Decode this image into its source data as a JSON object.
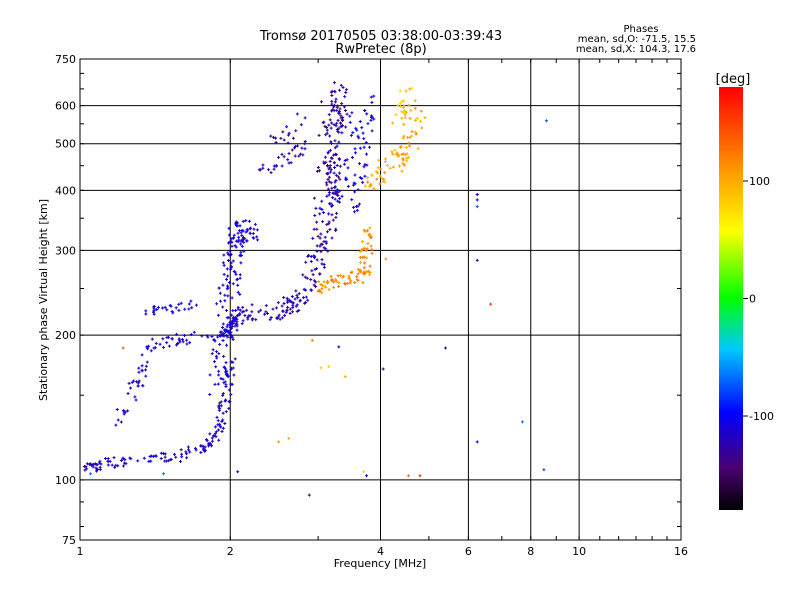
{
  "chart_data": {
    "type": "scatter",
    "title": "Tromsø 20170505 03:38:00-03:39:43",
    "subtitle": "RwPretec (8p)",
    "xlabel": "Frequency [MHz]",
    "ylabel": "Stationary phase Virtual Height [km]",
    "x_scale": "log",
    "y_scale": "log",
    "xlim": [
      1,
      16
    ],
    "ylim": [
      75,
      750
    ],
    "x_ticks": [
      "1",
      "2",
      "4",
      "6",
      "8",
      "10",
      "16"
    ],
    "y_ticks": [
      "75",
      "100",
      "200",
      "300",
      "400",
      "500",
      "600",
      "750"
    ],
    "grid": true,
    "stats": {
      "heading": "Phases",
      "line_o": "mean, sd,O: -71.5, 15.5",
      "line_x": "mean, sd,X: 104.3, 17.6"
    },
    "colorbar": {
      "label": "[deg]",
      "range": [
        -180,
        180
      ],
      "ticks": [
        "100",
        "0",
        "-100"
      ]
    },
    "traces": [
      {
        "phase": -120,
        "segments": [
          [
            1.02,
            105
          ],
          [
            1.1,
            108
          ],
          [
            1.3,
            110
          ],
          [
            1.6,
            112
          ],
          [
            1.8,
            118
          ],
          [
            1.92,
            130
          ],
          [
            1.97,
            150
          ],
          [
            2.0,
            175
          ]
        ],
        "density": 22,
        "jitter": 0.025
      },
      {
        "phase": -115,
        "segments": [
          [
            1.2,
            130
          ],
          [
            1.3,
            160
          ],
          [
            1.4,
            192
          ],
          [
            1.6,
            196
          ],
          [
            1.9,
            198
          ],
          [
            2.0,
            205
          ],
          [
            2.05,
            220
          ]
        ],
        "density": 18,
        "jitter": 0.03
      },
      {
        "phase": -110,
        "segments": [
          [
            1.35,
            225
          ],
          [
            1.5,
            226
          ],
          [
            1.7,
            232
          ]
        ],
        "density": 14,
        "jitter": 0.02
      },
      {
        "phase": -115,
        "segments": [
          [
            1.9,
            150
          ],
          [
            1.95,
            200
          ],
          [
            2.0,
            260
          ],
          [
            2.05,
            300
          ],
          [
            2.1,
            330
          ],
          [
            2.2,
            330
          ]
        ],
        "density": 30,
        "jitter": 0.05
      },
      {
        "phase": -125,
        "segments": [
          [
            2.0,
            210
          ],
          [
            2.1,
            222
          ],
          [
            2.5,
            225
          ],
          [
            2.7,
            232
          ],
          [
            2.9,
            260
          ],
          [
            3.0,
            300
          ],
          [
            3.15,
            380
          ],
          [
            3.2,
            450
          ],
          [
            3.25,
            560
          ],
          [
            3.3,
            650
          ]
        ],
        "density": 26,
        "jitter": 0.04
      },
      {
        "phase": -140,
        "segments": [
          [
            3.05,
            300
          ],
          [
            3.15,
            420
          ],
          [
            3.2,
            520
          ],
          [
            3.25,
            640
          ]
        ],
        "density": 24,
        "jitter": 0.06
      },
      {
        "phase": -110,
        "segments": [
          [
            3.4,
            380
          ],
          [
            3.5,
            420
          ],
          [
            3.65,
            520
          ],
          [
            3.7,
            620
          ]
        ],
        "density": 24,
        "jitter": 0.06
      },
      {
        "phase": -130,
        "segments": [
          [
            2.3,
            440
          ],
          [
            2.5,
            450
          ],
          [
            2.7,
            480
          ],
          [
            2.8,
            500
          ]
        ],
        "density": 10,
        "jitter": 0.03
      },
      {
        "phase": -130,
        "segments": [
          [
            2.4,
            500
          ],
          [
            2.6,
            520
          ],
          [
            2.8,
            560
          ]
        ],
        "density": 8,
        "jitter": 0.03
      },
      {
        "phase": 115,
        "segments": [
          [
            3.0,
            250
          ],
          [
            3.2,
            258
          ],
          [
            3.5,
            260
          ],
          [
            3.7,
            270
          ],
          [
            3.75,
            300
          ],
          [
            3.8,
            340
          ]
        ],
        "density": 18,
        "jitter": 0.03
      },
      {
        "phase": 105,
        "segments": [
          [
            3.9,
            420
          ],
          [
            4.1,
            440
          ],
          [
            4.4,
            470
          ],
          [
            4.6,
            520
          ],
          [
            4.7,
            620
          ]
        ],
        "density": 20,
        "jitter": 0.05
      },
      {
        "phase": 90,
        "segments": [
          [
            4.3,
            560
          ],
          [
            4.4,
            600
          ],
          [
            4.5,
            640
          ]
        ],
        "density": 8,
        "jitter": 0.03
      }
    ],
    "isolated_points": [
      {
        "x": 1.05,
        "y": 103,
        "phase": -70
      },
      {
        "x": 1.18,
        "y": 130,
        "phase": -100
      },
      {
        "x": 1.22,
        "y": 188,
        "phase": 140
      },
      {
        "x": 1.47,
        "y": 103,
        "phase": -70
      },
      {
        "x": 2.07,
        "y": 104,
        "phase": -120
      },
      {
        "x": 2.5,
        "y": 120,
        "phase": 110
      },
      {
        "x": 2.62,
        "y": 122,
        "phase": 105
      },
      {
        "x": 2.88,
        "y": 93,
        "phase": -150
      },
      {
        "x": 2.92,
        "y": 195,
        "phase": 120
      },
      {
        "x": 3.04,
        "y": 171,
        "phase": 90
      },
      {
        "x": 3.15,
        "y": 172,
        "phase": 85
      },
      {
        "x": 3.3,
        "y": 189,
        "phase": -120
      },
      {
        "x": 3.4,
        "y": 164,
        "phase": 100
      },
      {
        "x": 3.7,
        "y": 104,
        "phase": 40
      },
      {
        "x": 3.75,
        "y": 102,
        "phase": -115
      },
      {
        "x": 4.05,
        "y": 170,
        "phase": -150
      },
      {
        "x": 4.1,
        "y": 288,
        "phase": 110
      },
      {
        "x": 4.55,
        "y": 102,
        "phase": 130
      },
      {
        "x": 4.8,
        "y": 102,
        "phase": 160
      },
      {
        "x": 5.4,
        "y": 188,
        "phase": -150
      },
      {
        "x": 6.25,
        "y": 392,
        "phase": -110
      },
      {
        "x": 6.25,
        "y": 382,
        "phase": -100
      },
      {
        "x": 6.25,
        "y": 370,
        "phase": -80
      },
      {
        "x": 6.25,
        "y": 286,
        "phase": -140
      },
      {
        "x": 6.25,
        "y": 120,
        "phase": -100
      },
      {
        "x": 6.65,
        "y": 232,
        "phase": 160
      },
      {
        "x": 7.7,
        "y": 132,
        "phase": -70
      },
      {
        "x": 8.5,
        "y": 105,
        "phase": -80
      },
      {
        "x": 8.6,
        "y": 558,
        "phase": -80
      }
    ]
  }
}
